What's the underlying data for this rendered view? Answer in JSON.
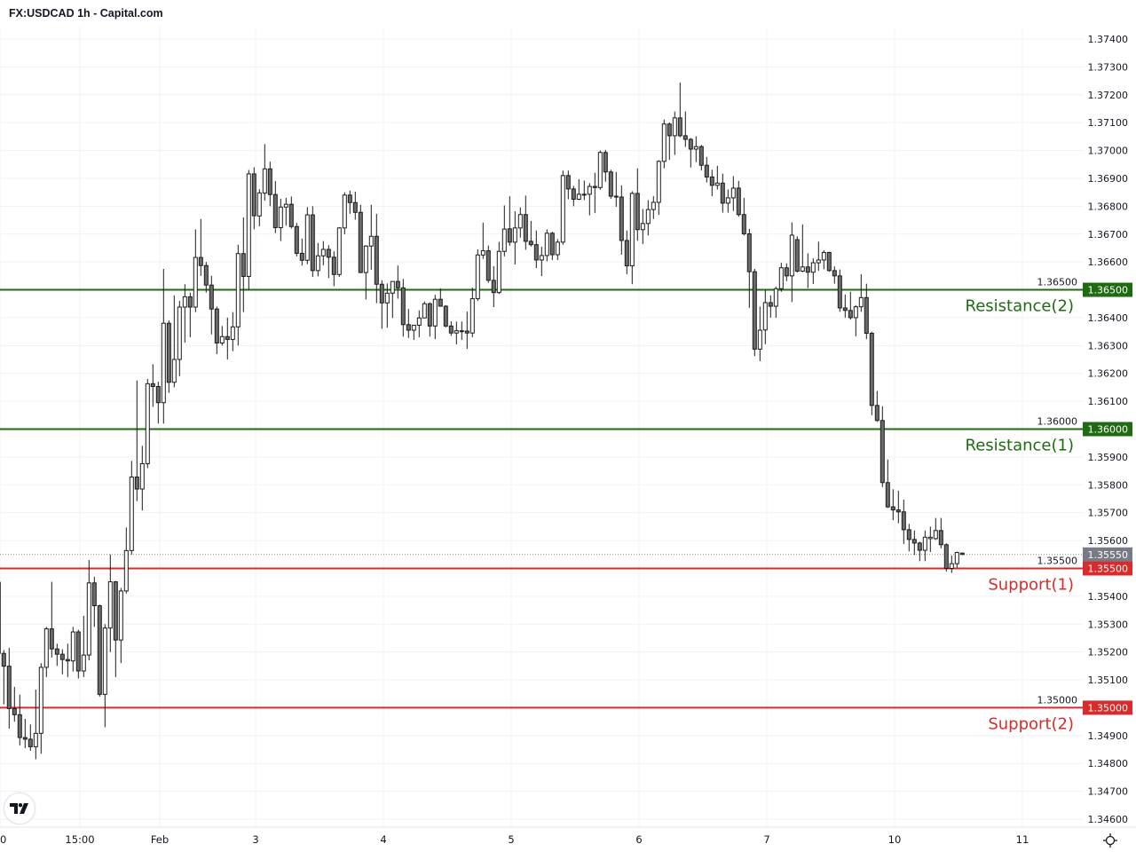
{
  "header": {
    "title": "FX:USDCAD 1h - Capital.com"
  },
  "logo_text": "TV",
  "chart_data": {
    "type": "candlestick",
    "symbol": "FX:USDCAD",
    "interval": "1h",
    "ylim": [
      1.3455,
      1.3745
    ],
    "y_ticks": [
      "1.37400",
      "1.37300",
      "1.37200",
      "1.37100",
      "1.37000",
      "1.36900",
      "1.36800",
      "1.36700",
      "1.36600",
      "1.36500",
      "1.36400",
      "1.36300",
      "1.36200",
      "1.36100",
      "1.36000",
      "1.35900",
      "1.35800",
      "1.35700",
      "1.35600",
      "1.35500",
      "1.35400",
      "1.35300",
      "1.35200",
      "1.35100",
      "1.35000",
      "1.34900",
      "1.34800",
      "1.34700",
      "1.34600"
    ],
    "x_ticks": [
      {
        "label": "0",
        "candle": 0
      },
      {
        "label": "15:00",
        "candle": 15
      },
      {
        "label": "Feb",
        "candle": 30
      },
      {
        "label": "3",
        "candle": 48
      },
      {
        "label": "4",
        "candle": 72
      },
      {
        "label": "5",
        "candle": 96
      },
      {
        "label": "6",
        "candle": 120
      },
      {
        "label": "7",
        "candle": 144
      },
      {
        "label": "10",
        "candle": 168
      },
      {
        "label": "11",
        "candle": 192
      }
    ],
    "last_price": {
      "value": 1.3555,
      "label": "1.35550",
      "color": "#787b86"
    },
    "levels": [
      {
        "name": "Resistance(2)",
        "value": 1.365,
        "price_label": "1.36500",
        "color": "#1f6b12"
      },
      {
        "name": "Resistance(1)",
        "value": 1.36,
        "price_label": "1.36000",
        "color": "#1f6b12"
      },
      {
        "name": "Support(1)",
        "value": 1.355,
        "price_label": "1.35500",
        "color": "#d92b2b"
      },
      {
        "name": "Support(2)",
        "value": 1.35,
        "price_label": "1.35000",
        "color": "#d92b2b"
      }
    ],
    "colors": {
      "up": "#ffffff",
      "down": "#6b6b6b",
      "outline": "#1a1a1a",
      "grid": "#f0f1f3"
    },
    "candles_ohlc": [
      [
        1.3545,
        1.3556,
        1.3515,
        1.35195
      ],
      [
        1.35195,
        1.35207,
        1.35012,
        1.35149
      ],
      [
        1.35149,
        1.35215,
        1.34925,
        1.34997
      ],
      [
        1.34997,
        1.35075,
        1.3495,
        1.34975
      ],
      [
        1.34975,
        1.35047,
        1.34865,
        1.34893
      ],
      [
        1.34893,
        1.3496,
        1.34855,
        1.34887
      ],
      [
        1.34887,
        1.3494,
        1.34845,
        1.3486
      ],
      [
        1.3486,
        1.35065,
        1.34815,
        1.34908
      ],
      [
        1.34908,
        1.3516,
        1.34835,
        1.35145
      ],
      [
        1.35145,
        1.3529,
        1.3511,
        1.35283
      ],
      [
        1.35283,
        1.35452,
        1.3518,
        1.35211
      ],
      [
        1.35211,
        1.3523,
        1.3515,
        1.35192
      ],
      [
        1.35192,
        1.3521,
        1.3512,
        1.35173
      ],
      [
        1.35173,
        1.3523,
        1.3511,
        1.35168
      ],
      [
        1.35168,
        1.3529,
        1.3513,
        1.35272
      ],
      [
        1.35272,
        1.3528,
        1.35105,
        1.35132
      ],
      [
        1.35132,
        1.3533,
        1.3511,
        1.35189
      ],
      [
        1.35189,
        1.3553,
        1.3517,
        1.35448
      ],
      [
        1.35448,
        1.3547,
        1.3529,
        1.35366
      ],
      [
        1.35366,
        1.3537,
        1.3504,
        1.35048
      ],
      [
        1.35048,
        1.353,
        1.3493,
        1.35286
      ],
      [
        1.35286,
        1.3555,
        1.352,
        1.35452
      ],
      [
        1.35452,
        1.35455,
        1.3511,
        1.35243
      ],
      [
        1.35243,
        1.3543,
        1.3516,
        1.35419
      ],
      [
        1.35419,
        1.35647,
        1.3541,
        1.35564
      ],
      [
        1.35564,
        1.35886,
        1.3555,
        1.35828
      ],
      [
        1.35828,
        1.36175,
        1.35741,
        1.35785
      ],
      [
        1.35785,
        1.3594,
        1.35708,
        1.35876
      ],
      [
        1.35876,
        1.3618,
        1.3586,
        1.36163
      ],
      [
        1.36163,
        1.36233,
        1.3608,
        1.36153
      ],
      [
        1.36153,
        1.3617,
        1.3602,
        1.36095
      ],
      [
        1.36095,
        1.36575,
        1.3602,
        1.3638
      ],
      [
        1.3638,
        1.3639,
        1.3613,
        1.36168
      ],
      [
        1.36168,
        1.3648,
        1.3615,
        1.3625
      ],
      [
        1.3625,
        1.3646,
        1.3619,
        1.36438
      ],
      [
        1.36438,
        1.3652,
        1.3631,
        1.36475
      ],
      [
        1.36475,
        1.3649,
        1.3633,
        1.36438
      ],
      [
        1.36438,
        1.36717,
        1.3642,
        1.36616
      ],
      [
        1.36616,
        1.36754,
        1.3655,
        1.36587
      ],
      [
        1.36587,
        1.366,
        1.3649,
        1.36517
      ],
      [
        1.36517,
        1.3655,
        1.3634,
        1.36431
      ],
      [
        1.36431,
        1.3644,
        1.36269,
        1.36309
      ],
      [
        1.36309,
        1.3637,
        1.363,
        1.36332
      ],
      [
        1.36332,
        1.364,
        1.3625,
        1.36322
      ],
      [
        1.36322,
        1.3642,
        1.3628,
        1.36367
      ],
      [
        1.36367,
        1.36662,
        1.363,
        1.3663
      ],
      [
        1.3663,
        1.3676,
        1.3642,
        1.36548
      ],
      [
        1.36548,
        1.3693,
        1.365,
        1.36916
      ],
      [
        1.36916,
        1.3694,
        1.36717,
        1.36766
      ],
      [
        1.36765,
        1.36861,
        1.36728,
        1.36848
      ],
      [
        1.36847,
        1.37023,
        1.3682,
        1.36934
      ],
      [
        1.36934,
        1.3696,
        1.368,
        1.36842
      ],
      [
        1.36842,
        1.3689,
        1.36704,
        1.36723
      ],
      [
        1.36723,
        1.36827,
        1.36675,
        1.36797
      ],
      [
        1.36797,
        1.3683,
        1.3673,
        1.36807
      ],
      [
        1.36807,
        1.36835,
        1.3672,
        1.36727
      ],
      [
        1.36727,
        1.3674,
        1.3662,
        1.36631
      ],
      [
        1.36631,
        1.36684,
        1.36587,
        1.36606
      ],
      [
        1.36606,
        1.36797,
        1.36592,
        1.36769
      ],
      [
        1.36769,
        1.368,
        1.36546,
        1.36569
      ],
      [
        1.36569,
        1.36668,
        1.36548,
        1.36622
      ],
      [
        1.36622,
        1.36675,
        1.36588,
        1.36645
      ],
      [
        1.36645,
        1.3666,
        1.36542,
        1.36617
      ],
      [
        1.36617,
        1.36638,
        1.36513,
        1.36555
      ],
      [
        1.36555,
        1.36725,
        1.36546,
        1.36722
      ],
      [
        1.36722,
        1.3685,
        1.36699,
        1.3684
      ],
      [
        1.3684,
        1.36856,
        1.36773,
        1.36813
      ],
      [
        1.36813,
        1.36852,
        1.36752,
        1.36778
      ],
      [
        1.36778,
        1.36805,
        1.3656,
        1.36562
      ],
      [
        1.36562,
        1.3666,
        1.36465,
        1.36657
      ],
      [
        1.36657,
        1.36805,
        1.36572,
        1.36692
      ],
      [
        1.36692,
        1.36773,
        1.36452,
        1.3652
      ],
      [
        1.3652,
        1.36534,
        1.3636,
        1.36453
      ],
      [
        1.36453,
        1.36523,
        1.36364,
        1.36488
      ],
      [
        1.36488,
        1.3653,
        1.36399,
        1.3653
      ],
      [
        1.3653,
        1.36587,
        1.36468,
        1.36507
      ],
      [
        1.36507,
        1.36539,
        1.36332,
        1.36375
      ],
      [
        1.36375,
        1.36431,
        1.36327,
        1.36355
      ],
      [
        1.36355,
        1.36373,
        1.3632,
        1.36373
      ],
      [
        1.36373,
        1.36426,
        1.3633,
        1.36399
      ],
      [
        1.36399,
        1.36458,
        1.36399,
        1.3645
      ],
      [
        1.3645,
        1.36455,
        1.36332,
        1.3637
      ],
      [
        1.3637,
        1.36482,
        1.36323,
        1.36466
      ],
      [
        1.36466,
        1.36505,
        1.3644,
        1.36441
      ],
      [
        1.36441,
        1.36445,
        1.36365,
        1.3637
      ],
      [
        1.3637,
        1.36387,
        1.36335,
        1.36345
      ],
      [
        1.36345,
        1.36386,
        1.36304,
        1.36353
      ],
      [
        1.36353,
        1.36386,
        1.3632,
        1.36352
      ],
      [
        1.36352,
        1.36422,
        1.36288,
        1.36345
      ],
      [
        1.36345,
        1.36508,
        1.3633,
        1.36468
      ],
      [
        1.36468,
        1.36645,
        1.3646,
        1.36625
      ],
      [
        1.36625,
        1.36741,
        1.36611,
        1.3664
      ],
      [
        1.3664,
        1.36659,
        1.36525,
        1.36534
      ],
      [
        1.36534,
        1.36585,
        1.36438,
        1.3649
      ],
      [
        1.3649,
        1.36672,
        1.36485,
        1.36638
      ],
      [
        1.36638,
        1.36803,
        1.3662,
        1.36718
      ],
      [
        1.36719,
        1.36836,
        1.36658,
        1.36671
      ],
      [
        1.36671,
        1.36782,
        1.36591,
        1.36722
      ],
      [
        1.36722,
        1.36796,
        1.36687,
        1.3677
      ],
      [
        1.3677,
        1.36838,
        1.36644,
        1.36674
      ],
      [
        1.36674,
        1.36747,
        1.36655,
        1.36662
      ],
      [
        1.36662,
        1.36713,
        1.36578,
        1.36607
      ],
      [
        1.36607,
        1.36655,
        1.36549,
        1.36623
      ],
      [
        1.36623,
        1.36717,
        1.36602,
        1.36703
      ],
      [
        1.36703,
        1.36708,
        1.36607,
        1.36626
      ],
      [
        1.36626,
        1.36682,
        1.36607,
        1.36671
      ],
      [
        1.36671,
        1.36928,
        1.36662,
        1.3691
      ],
      [
        1.3691,
        1.36928,
        1.36825,
        1.36862
      ],
      [
        1.36862,
        1.36873,
        1.368,
        1.36825
      ],
      [
        1.36825,
        1.36897,
        1.36822,
        1.36843
      ],
      [
        1.36843,
        1.36892,
        1.36822,
        1.36843
      ],
      [
        1.36843,
        1.36883,
        1.36767,
        1.36871
      ],
      [
        1.36871,
        1.3692,
        1.36776,
        1.36867
      ],
      [
        1.36867,
        1.37,
        1.36859,
        1.36993
      ],
      [
        1.36993,
        1.37002,
        1.36888,
        1.36923
      ],
      [
        1.36923,
        1.36931,
        1.36827,
        1.36836
      ],
      [
        1.36836,
        1.36923,
        1.36798,
        1.36833
      ],
      [
        1.36833,
        1.36875,
        1.36626,
        1.36677
      ],
      [
        1.36677,
        1.36713,
        1.36556,
        1.36586
      ],
      [
        1.36586,
        1.36854,
        1.3652,
        1.36846
      ],
      [
        1.36846,
        1.36936,
        1.36676,
        1.36716
      ],
      [
        1.36716,
        1.3679,
        1.36664,
        1.36738
      ],
      [
        1.36738,
        1.36822,
        1.36695,
        1.36788
      ],
      [
        1.36788,
        1.36836,
        1.36754,
        1.36814
      ],
      [
        1.36814,
        1.36965,
        1.36769,
        1.36961
      ],
      [
        1.36961,
        1.37111,
        1.36936,
        1.37095
      ],
      [
        1.37095,
        1.37101,
        1.36966,
        1.37053
      ],
      [
        1.37053,
        1.3714,
        1.36984,
        1.37117
      ],
      [
        1.37117,
        1.37244,
        1.37048,
        1.37053
      ],
      [
        1.37053,
        1.3714,
        1.37013,
        1.3704
      ],
      [
        1.3704,
        1.37045,
        1.36939,
        1.37005
      ],
      [
        1.37005,
        1.37051,
        1.36958,
        1.37014
      ],
      [
        1.37014,
        1.3702,
        1.36928,
        1.36947
      ],
      [
        1.36947,
        1.36977,
        1.36885,
        1.36905
      ],
      [
        1.36905,
        1.36931,
        1.36836,
        1.36875
      ],
      [
        1.36875,
        1.36945,
        1.3686,
        1.36883
      ],
      [
        1.36883,
        1.36917,
        1.36777,
        1.36811
      ],
      [
        1.36811,
        1.3686,
        1.36777,
        1.3683
      ],
      [
        1.3683,
        1.36908,
        1.36783,
        1.36865
      ],
      [
        1.36865,
        1.36891,
        1.36763,
        1.3677
      ],
      [
        1.3677,
        1.3683,
        1.36695,
        1.36701
      ],
      [
        1.36701,
        1.36719,
        1.36435,
        1.36565
      ],
      [
        1.36565,
        1.36575,
        1.36262,
        1.36287
      ],
      [
        1.36287,
        1.3644,
        1.36244,
        1.36355
      ],
      [
        1.36356,
        1.36499,
        1.36305,
        1.36454
      ],
      [
        1.36454,
        1.3648,
        1.364,
        1.36441
      ],
      [
        1.36441,
        1.36512,
        1.364,
        1.36504
      ],
      [
        1.36504,
        1.36597,
        1.36493,
        1.36579
      ],
      [
        1.36579,
        1.36595,
        1.36531,
        1.3655
      ],
      [
        1.3655,
        1.36742,
        1.36456,
        1.36696
      ],
      [
        1.3668,
        1.36692,
        1.36562,
        1.36567
      ],
      [
        1.36567,
        1.36735,
        1.36563,
        1.36582
      ],
      [
        1.36582,
        1.36631,
        1.36506,
        1.36563
      ],
      [
        1.36563,
        1.36613,
        1.36521,
        1.36597
      ],
      [
        1.36597,
        1.36673,
        1.36568,
        1.36607
      ],
      [
        1.36607,
        1.36642,
        1.36574,
        1.36634
      ],
      [
        1.36634,
        1.36637,
        1.36565,
        1.36569
      ],
      [
        1.36569,
        1.36584,
        1.36522,
        1.3655
      ],
      [
        1.3655,
        1.36573,
        1.36421,
        1.36435
      ],
      [
        1.36435,
        1.36483,
        1.364,
        1.36426
      ],
      [
        1.36426,
        1.36493,
        1.36393,
        1.364
      ],
      [
        1.364,
        1.36445,
        1.36333,
        1.36439
      ],
      [
        1.36439,
        1.36556,
        1.36421,
        1.36472
      ],
      [
        1.36472,
        1.36522,
        1.36323,
        1.36344
      ],
      [
        1.36344,
        1.3635,
        1.3605,
        1.36085
      ],
      [
        1.36085,
        1.36137,
        1.36026,
        1.36031
      ],
      [
        1.36031,
        1.36082,
        1.35792,
        1.35808
      ],
      [
        1.35808,
        1.35891,
        1.35717,
        1.35721
      ],
      [
        1.35721,
        1.35784,
        1.35673,
        1.3571
      ],
      [
        1.3571,
        1.35779,
        1.35662,
        1.35703
      ],
      [
        1.35703,
        1.35747,
        1.35588,
        1.35639
      ],
      [
        1.35639,
        1.3566,
        1.35561,
        1.35604
      ],
      [
        1.35604,
        1.35636,
        1.35549,
        1.35591
      ],
      [
        1.35591,
        1.35596,
        1.35526,
        1.35565
      ],
      [
        1.35565,
        1.35636,
        1.35526,
        1.35612
      ],
      [
        1.35607,
        1.3565,
        1.35559,
        1.35612
      ],
      [
        1.35607,
        1.35681,
        1.35602,
        1.35636
      ],
      [
        1.35636,
        1.35681,
        1.35572,
        1.35585
      ],
      [
        1.35585,
        1.3559,
        1.35489,
        1.355
      ],
      [
        1.355,
        1.35546,
        1.35484,
        1.35517
      ],
      [
        1.35517,
        1.3556,
        1.35503,
        1.35557
      ],
      [
        1.35555,
        1.35557,
        1.3555,
        1.3555
      ]
    ]
  }
}
